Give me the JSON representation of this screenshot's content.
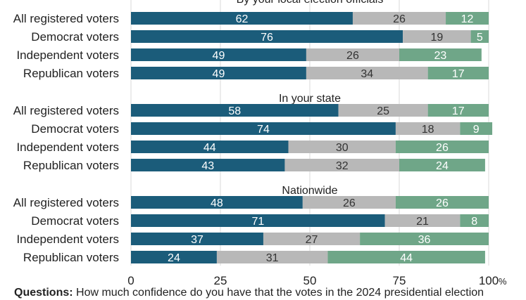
{
  "chart_data": {
    "type": "bar",
    "stacked": true,
    "orientation": "horizontal",
    "colors": [
      "#1b5c7a",
      "#b8b8b8",
      "#6fa688"
    ],
    "categories": [
      "All registered voters",
      "Democrat voters",
      "Independent voters",
      "Republican voters"
    ],
    "xlim": [
      0,
      100
    ],
    "x_ticks": [
      "0",
      "25",
      "50",
      "75",
      "100"
    ],
    "x_unit": "%",
    "grid": true,
    "panels": [
      {
        "title": "By your local election officials",
        "series": [
          {
            "values": [
              62,
              76,
              49,
              49
            ]
          },
          {
            "values": [
              26,
              19,
              26,
              34
            ]
          },
          {
            "values": [
              12,
              5,
              23,
              17
            ]
          }
        ]
      },
      {
        "title": "In your state",
        "series": [
          {
            "values": [
              58,
              74,
              44,
              43
            ]
          },
          {
            "values": [
              25,
              18,
              30,
              32
            ]
          },
          {
            "values": [
              17,
              9,
              26,
              24
            ]
          }
        ]
      },
      {
        "title": "Nationwide",
        "series": [
          {
            "values": [
              48,
              71,
              37,
              24
            ]
          },
          {
            "values": [
              26,
              21,
              27,
              31
            ]
          },
          {
            "values": [
              26,
              8,
              36,
              44
            ]
          }
        ]
      }
    ]
  },
  "footnote": {
    "label": "Questions:",
    "text": "How much confidence do you have that the votes in the 2024 presidential election"
  }
}
